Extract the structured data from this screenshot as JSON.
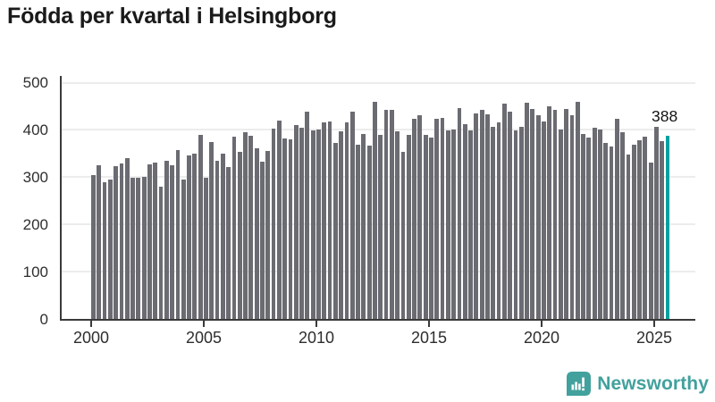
{
  "title": "Födda per kvartal i Helsingborg",
  "chart_data": {
    "type": "bar",
    "title": "Födda per kvartal i Helsingborg",
    "xlabel": "",
    "ylabel": "",
    "ylim": [
      0,
      500
    ],
    "y_ticks": [
      0,
      100,
      200,
      300,
      400,
      500
    ],
    "x_tick_labels": [
      "2000",
      "2005",
      "2010",
      "2015",
      "2020",
      "2025"
    ],
    "grid": "horizontal",
    "legend": "none",
    "frequency": "quarterly",
    "first_quarter": "2000-Q1",
    "last_quarter": "2025-Q3",
    "bar_color": "#6b6b72",
    "highlight_color": "#00a1a1",
    "highlight_index": 102,
    "last_value_label": "388",
    "values": [
      304,
      325,
      290,
      294,
      323,
      329,
      340,
      298,
      299,
      301,
      327,
      330,
      279,
      335,
      325,
      357,
      294,
      345,
      349,
      389,
      299,
      374,
      334,
      350,
      321,
      386,
      353,
      396,
      388,
      362,
      333,
      356,
      403,
      420,
      382,
      380,
      411,
      405,
      438,
      399,
      400,
      416,
      417,
      373,
      397,
      416,
      439,
      368,
      392,
      367,
      459,
      389,
      442,
      442,
      397,
      354,
      390,
      424,
      431,
      389,
      384,
      424,
      426,
      398,
      400,
      447,
      412,
      398,
      435,
      443,
      433,
      406,
      416,
      455,
      439,
      398,
      406,
      458,
      445,
      431,
      417,
      450,
      443,
      400,
      444,
      431,
      460,
      392,
      384,
      405,
      401,
      373,
      365,
      423,
      395,
      347,
      369,
      379,
      386,
      330,
      407,
      377,
      388
    ]
  },
  "branding": {
    "name": "Newsworthy",
    "color": "#42a19d"
  },
  "colors": {
    "bar": "#6b6b72",
    "highlight": "#00a1a1",
    "axis": "#3a3a3a",
    "grid": "#ececec",
    "title": "#1a1a1a",
    "tick_label": "#2e2e2e"
  }
}
